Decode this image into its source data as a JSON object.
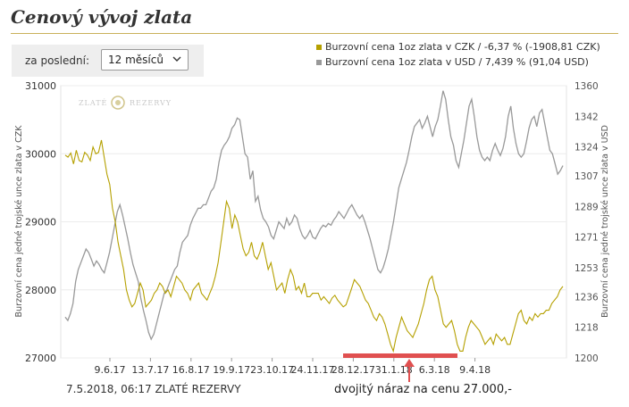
{
  "page": {
    "title": "Cenový vývoj zlata",
    "period_label": "za poslední:",
    "period_value": "12 měsíců",
    "footer_left": "7.5.2018, 06:17 ZLATÉ REZERVY",
    "footer_right": "dvojitý náraz na cenu 27.000,-"
  },
  "chart_data": {
    "type": "line",
    "watermark": "ZLATÉ REZERVY",
    "x_tick_labels": [
      "9.6.17",
      "13.7.17",
      "16.8.17",
      "19.9.17",
      "23.10.17",
      "24.11.17",
      "28.12.17",
      "31.1.18",
      "6.3.18",
      "9.4.18"
    ],
    "ylabel_left": "Burzovní cena jedné trojské unce zlata v CZK",
    "ylabel_right": "Burzovní cena jedné trojské unce zlata v USD",
    "y_left": {
      "ticks": [
        27000,
        28000,
        29000,
        30000,
        31000
      ],
      "range": [
        27000,
        31000
      ]
    },
    "y_right": {
      "ticks": [
        1200,
        1218,
        1236,
        1253,
        1271,
        1289,
        1307,
        1324,
        1342,
        1360
      ],
      "range": [
        1200,
        1360
      ]
    },
    "series": [
      {
        "name": "Burzovní cena 1oz zlata v CZK / -6,37 % (-1908,81 CZK)",
        "color": "#b5a000",
        "axis": "left",
        "values": [
          29980,
          29950,
          30010,
          29850,
          30050,
          29900,
          29880,
          30020,
          29980,
          29900,
          30100,
          30000,
          30020,
          30200,
          29950,
          29700,
          29550,
          29200,
          29000,
          28700,
          28500,
          28300,
          28000,
          27850,
          27750,
          27800,
          27950,
          28100,
          28000,
          27750,
          27800,
          27850,
          27950,
          28000,
          28100,
          28050,
          27950,
          28000,
          27900,
          28050,
          28200,
          28150,
          28100,
          28000,
          27950,
          27850,
          28000,
          28050,
          28100,
          27950,
          27900,
          27850,
          27950,
          28050,
          28200,
          28400,
          28700,
          29000,
          29300,
          29200,
          28900,
          29100,
          29000,
          28800,
          28600,
          28500,
          28550,
          28700,
          28500,
          28450,
          28550,
          28700,
          28500,
          28300,
          28400,
          28200,
          28000,
          28050,
          28100,
          27950,
          28150,
          28300,
          28200,
          28000,
          28050,
          27950,
          28100,
          27900,
          27900,
          27950,
          27950,
          27950,
          27850,
          27900,
          27850,
          27800,
          27880,
          27920,
          27850,
          27800,
          27750,
          27780,
          27900,
          28020,
          28150,
          28100,
          28050,
          27950,
          27850,
          27800,
          27700,
          27600,
          27550,
          27650,
          27600,
          27500,
          27350,
          27200,
          27100,
          27300,
          27450,
          27600,
          27500,
          27400,
          27350,
          27300,
          27400,
          27500,
          27650,
          27800,
          28000,
          28150,
          28200,
          28000,
          27900,
          27700,
          27500,
          27450,
          27500,
          27550,
          27400,
          27200,
          27100,
          27100,
          27300,
          27450,
          27550,
          27500,
          27450,
          27400,
          27300,
          27200,
          27250,
          27300,
          27200,
          27350,
          27300,
          27250,
          27300,
          27200,
          27200,
          27350,
          27500,
          27650,
          27700,
          27550,
          27500,
          27600,
          27550,
          27650,
          27600,
          27650,
          27650,
          27700,
          27700,
          27800,
          27850,
          27900,
          28000,
          28050
        ]
      },
      {
        "name": "Burzovní cena 1oz zlata v USD / 7,439 % (91,04 USD)",
        "color": "#999999",
        "axis": "right",
        "values": [
          1224,
          1222,
          1226,
          1232,
          1245,
          1252,
          1256,
          1260,
          1264,
          1262,
          1258,
          1254,
          1257,
          1255,
          1252,
          1250,
          1256,
          1262,
          1270,
          1278,
          1286,
          1290,
          1284,
          1277,
          1270,
          1262,
          1255,
          1250,
          1245,
          1235,
          1228,
          1222,
          1215,
          1211,
          1214,
          1220,
          1226,
          1232,
          1238,
          1240,
          1244,
          1248,
          1252,
          1254,
          1262,
          1268,
          1270,
          1272,
          1278,
          1282,
          1285,
          1288,
          1288,
          1290,
          1290,
          1294,
          1298,
          1300,
          1305,
          1315,
          1322,
          1325,
          1327,
          1330,
          1335,
          1337,
          1341,
          1340,
          1330,
          1320,
          1318,
          1305,
          1310,
          1292,
          1295,
          1287,
          1282,
          1280,
          1277,
          1272,
          1270,
          1275,
          1280,
          1278,
          1276,
          1282,
          1278,
          1280,
          1284,
          1282,
          1276,
          1272,
          1270,
          1272,
          1275,
          1271,
          1270,
          1273,
          1276,
          1278,
          1277,
          1279,
          1278,
          1281,
          1283,
          1286,
          1284,
          1282,
          1285,
          1288,
          1290,
          1287,
          1284,
          1282,
          1284,
          1280,
          1275,
          1270,
          1264,
          1258,
          1252,
          1250,
          1253,
          1258,
          1264,
          1272,
          1280,
          1290,
          1300,
          1305,
          1310,
          1315,
          1322,
          1330,
          1336,
          1338,
          1340,
          1335,
          1338,
          1342,
          1336,
          1330,
          1336,
          1340,
          1348,
          1357,
          1352,
          1340,
          1330,
          1325,
          1316,
          1312,
          1320,
          1328,
          1338,
          1348,
          1352,
          1342,
          1330,
          1322,
          1318,
          1316,
          1318,
          1316,
          1322,
          1326,
          1322,
          1319,
          1323,
          1330,
          1342,
          1348,
          1335,
          1326,
          1320,
          1318,
          1320,
          1327,
          1335,
          1340,
          1342,
          1336,
          1344,
          1346,
          1338,
          1330,
          1322,
          1320,
          1314,
          1308,
          1310,
          1313
        ]
      }
    ]
  }
}
